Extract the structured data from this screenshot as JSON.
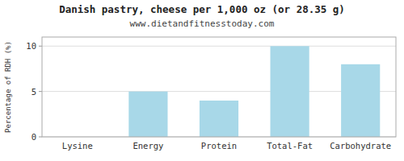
{
  "chart_data": {
    "type": "bar",
    "title": "Danish pastry, cheese per 1,000 oz (or 28.35 g)",
    "subtitle": "www.dietandfitnesstoday.com",
    "categories": [
      "Lysine",
      "Energy",
      "Protein",
      "Total-Fat",
      "Carbohydrate"
    ],
    "values": [
      0,
      5,
      4,
      10,
      8
    ],
    "color": "#a8d8e8",
    "ylabel": "Percentage of RDH (%)",
    "ylim": [
      0,
      11
    ],
    "yticks": [
      0,
      5,
      10
    ],
    "grid": true
  }
}
